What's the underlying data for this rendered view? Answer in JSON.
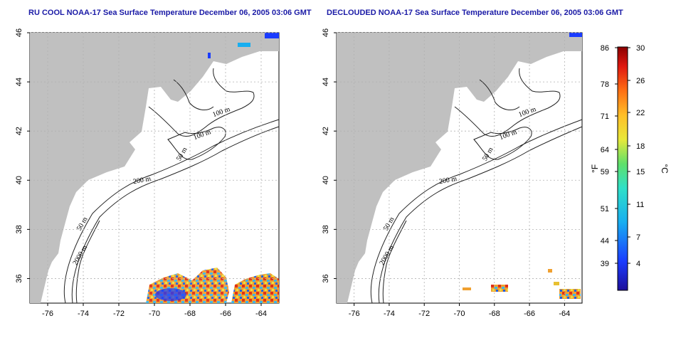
{
  "panels": [
    {
      "id": "left",
      "title": "RU COOL NOAA-17 Sea Surface Temperature December 06, 2005 03:06 GMT",
      "contour_labels": [
        "100 m",
        "100 m",
        "50 m",
        "200 m",
        "50 m",
        "2000 m"
      ]
    },
    {
      "id": "right",
      "title": "DECLOUDED NOAA-17 Sea Surface Temperature December 06, 2005 03:06 GMT",
      "contour_labels": [
        "100 m",
        "100 m",
        "50 m",
        "200 m",
        "50 m",
        "2000 m"
      ]
    }
  ],
  "axes": {
    "x_ticks": [
      "-76",
      "-74",
      "-72",
      "-70",
      "-68",
      "-66",
      "-64"
    ],
    "y_ticks": [
      "46",
      "44",
      "42",
      "40",
      "38",
      "36"
    ],
    "xlim": [
      -77,
      -63
    ],
    "ylim": [
      35,
      46
    ],
    "grid": true
  },
  "colorbar": {
    "fahrenheit_ticks": [
      "86",
      "78",
      "71",
      "64",
      "59",
      "51",
      "44",
      "39"
    ],
    "celsius_ticks": [
      "30",
      "26",
      "22",
      "18",
      "15",
      "11",
      "7",
      "4"
    ],
    "fahrenheit_unit": "°F",
    "celsius_unit": "°C",
    "range_c": [
      0,
      30
    ]
  },
  "colors": {
    "land": "#c0c0c0",
    "title": "#1a1aa6",
    "grid": "#b0b0b0"
  }
}
